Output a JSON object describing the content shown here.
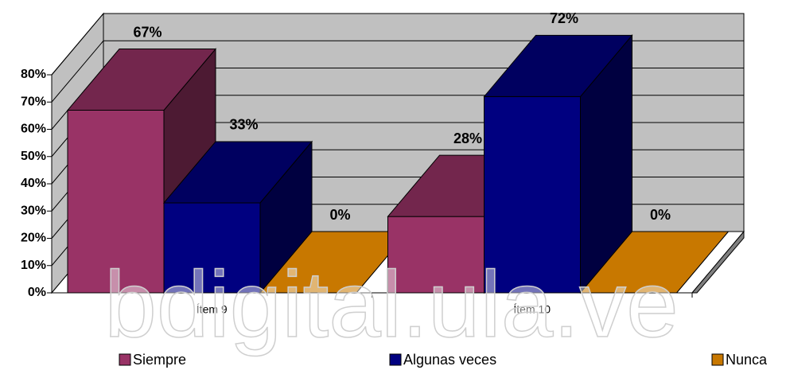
{
  "chart_data": {
    "type": "bar3d",
    "categories": [
      "Ítem 9",
      "Ítem 10"
    ],
    "series": [
      {
        "name": "Siempre",
        "color": "#993366",
        "values": [
          67,
          28
        ],
        "value_labels": [
          "67%",
          "28%"
        ]
      },
      {
        "name": "Algunas veces",
        "color": "#000080",
        "values": [
          33,
          72
        ],
        "value_labels": [
          "33%",
          "72%"
        ]
      },
      {
        "name": "Nunca",
        "color": "#C87800",
        "values": [
          0,
          0
        ],
        "value_labels": [
          "0%",
          "0%"
        ]
      }
    ],
    "ylim": [
      0,
      80
    ],
    "yticks": [
      {
        "value": 0,
        "label": "0%"
      },
      {
        "value": 10,
        "label": "10%"
      },
      {
        "value": 20,
        "label": "20%"
      },
      {
        "value": 30,
        "label": "30%"
      },
      {
        "value": 40,
        "label": "40%"
      },
      {
        "value": 50,
        "label": "50%"
      },
      {
        "value": 60,
        "label": "60%"
      },
      {
        "value": 70,
        "label": "70%"
      },
      {
        "value": 80,
        "label": "80%"
      }
    ],
    "grid": true,
    "legend": "bottom",
    "watermark": "bdigital.ula.ve"
  }
}
